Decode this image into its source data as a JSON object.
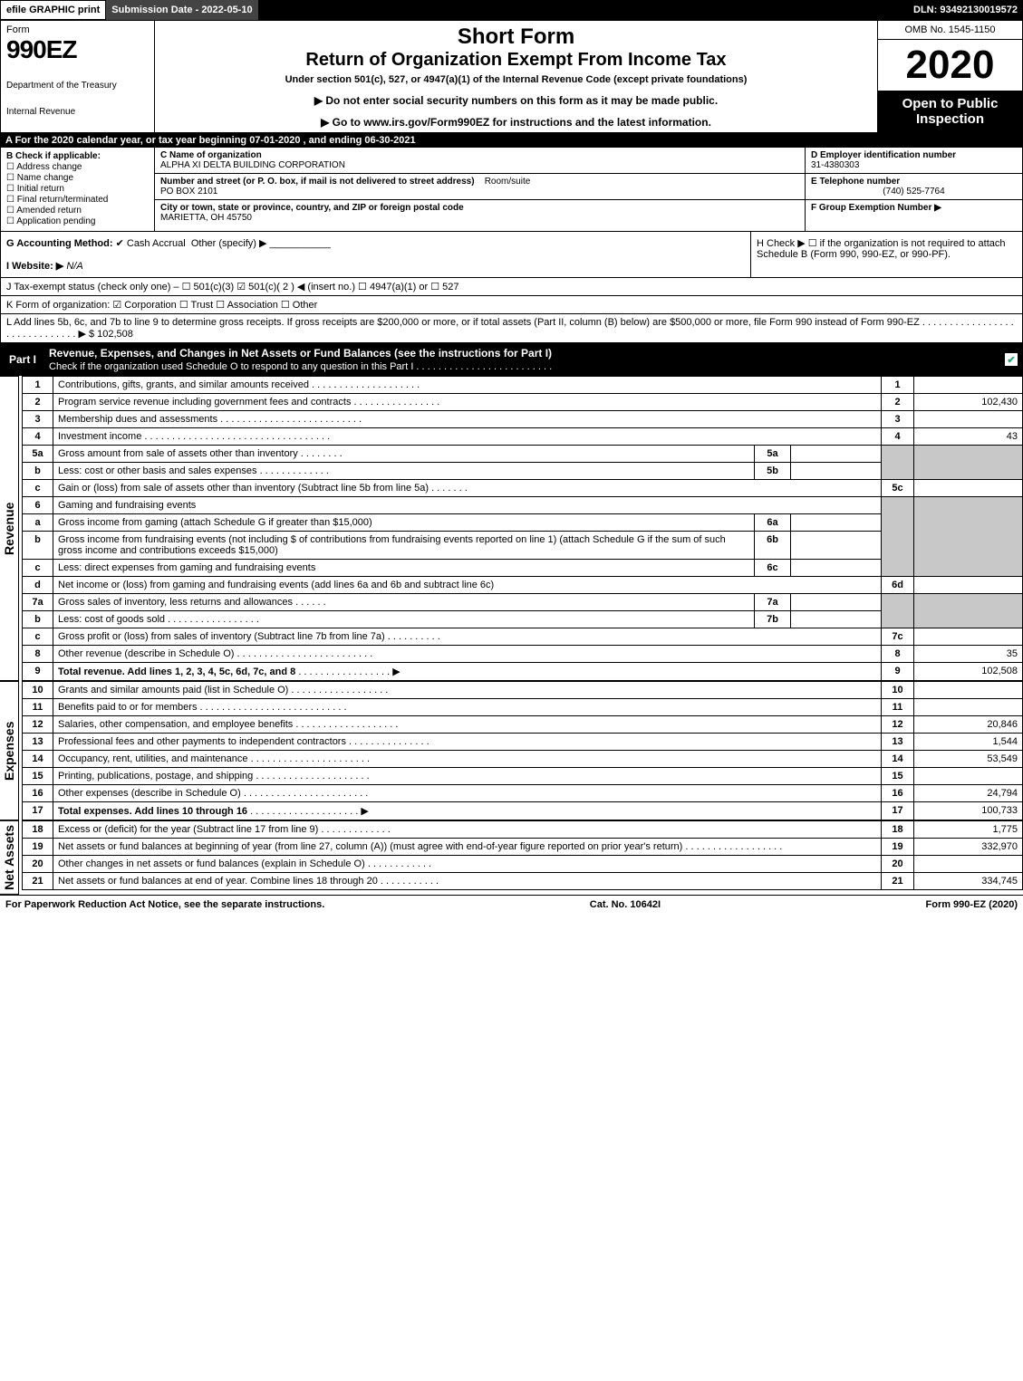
{
  "topbar": {
    "efile": "efile GRAPHIC print",
    "submission": "Submission Date - 2022-05-10",
    "dln": "DLN: 93492130019572"
  },
  "header": {
    "form_word": "Form",
    "form_num": "990EZ",
    "dept1": "Department of the Treasury",
    "dept2": "Internal Revenue",
    "short": "Short Form",
    "return": "Return of Organization Exempt From Income Tax",
    "under": "Under section 501(c), 527, or 4947(a)(1) of the Internal Revenue Code (except private foundations)",
    "warn": "▶ Do not enter social security numbers on this form as it may be made public.",
    "goto": "▶ Go to www.irs.gov/Form990EZ for instructions and the latest information.",
    "omb": "OMB No. 1545-1150",
    "year": "2020",
    "opento": "Open to Public Inspection"
  },
  "rowA": "A  For the 2020 calendar year, or tax year beginning 07-01-2020 , and ending 06-30-2021",
  "B": {
    "title": "B  Check if applicable:",
    "opts": [
      "Address change",
      "Name change",
      "Initial return",
      "Final return/terminated",
      "Amended return",
      "Application pending"
    ]
  },
  "C": {
    "name_label": "C Name of organization",
    "name": "ALPHA XI DELTA BUILDING CORPORATION",
    "addr_label": "Number and street (or P. O. box, if mail is not delivered to street address)",
    "room_label": "Room/suite",
    "addr": "PO BOX 2101",
    "city_label": "City or town, state or province, country, and ZIP or foreign postal code",
    "city": "MARIETTA, OH  45750"
  },
  "D": {
    "label": "D Employer identification number",
    "val": "31-4380303"
  },
  "E": {
    "label": "E Telephone number",
    "val": "(740) 525-7764"
  },
  "F": {
    "label": "F Group Exemption Number  ▶",
    "val": ""
  },
  "G": {
    "label": "G Accounting Method:",
    "cash": "Cash",
    "accrual": "Accrual",
    "other": "Other (specify) ▶"
  },
  "H": {
    "text": "H  Check ▶ ☐ if the organization is not required to attach Schedule B (Form 990, 990-EZ, or 990-PF)."
  },
  "I": {
    "label": "I Website: ▶",
    "val": "N/A"
  },
  "J": {
    "text": "J Tax-exempt status (check only one) – ☐ 501(c)(3)  ☑ 501(c)( 2 ) ◀ (insert no.)  ☐ 4947(a)(1) or  ☐ 527"
  },
  "K": {
    "text": "K Form of organization:  ☑ Corporation  ☐ Trust  ☐ Association  ☐ Other"
  },
  "L": {
    "text": "L Add lines 5b, 6c, and 7b to line 9 to determine gross receipts. If gross receipts are $200,000 or more, or if total assets (Part II, column (B) below) are $500,000 or more, file Form 990 instead of Form 990-EZ  . . . . . . . . . . . . . . . . . . . . . . . . . . . . . .  ▶ $ 102,508"
  },
  "partI": {
    "label": "Part I",
    "title": "Revenue, Expenses, and Changes in Net Assets or Fund Balances (see the instructions for Part I)",
    "sub": "Check if the organization used Schedule O to respond to any question in this Part I . . . . . . . . . . . . . . . . . . . . . . . . ."
  },
  "revenue_label": "Revenue",
  "expenses_label": "Expenses",
  "netassets_label": "Net Assets",
  "lines": {
    "l1": {
      "n": "1",
      "d": "Contributions, gifts, grants, and similar amounts received",
      "box": "1",
      "amt": ""
    },
    "l2": {
      "n": "2",
      "d": "Program service revenue including government fees and contracts",
      "box": "2",
      "amt": "102,430"
    },
    "l3": {
      "n": "3",
      "d": "Membership dues and assessments",
      "box": "3",
      "amt": ""
    },
    "l4": {
      "n": "4",
      "d": "Investment income",
      "box": "4",
      "amt": "43"
    },
    "l5a": {
      "n": "5a",
      "d": "Gross amount from sale of assets other than inventory",
      "sub": "5a"
    },
    "l5b": {
      "n": "b",
      "d": "Less: cost or other basis and sales expenses",
      "sub": "5b"
    },
    "l5c": {
      "n": "c",
      "d": "Gain or (loss) from sale of assets other than inventory (Subtract line 5b from line 5a)",
      "box": "5c",
      "amt": ""
    },
    "l6": {
      "n": "6",
      "d": "Gaming and fundraising events"
    },
    "l6a": {
      "n": "a",
      "d": "Gross income from gaming (attach Schedule G if greater than $15,000)",
      "sub": "6a"
    },
    "l6b": {
      "n": "b",
      "d": "Gross income from fundraising events (not including $               of contributions from fundraising events reported on line 1) (attach Schedule G if the sum of such gross income and contributions exceeds $15,000)",
      "sub": "6b"
    },
    "l6c": {
      "n": "c",
      "d": "Less: direct expenses from gaming and fundraising events",
      "sub": "6c"
    },
    "l6d": {
      "n": "d",
      "d": "Net income or (loss) from gaming and fundraising events (add lines 6a and 6b and subtract line 6c)",
      "box": "6d",
      "amt": ""
    },
    "l7a": {
      "n": "7a",
      "d": "Gross sales of inventory, less returns and allowances",
      "sub": "7a"
    },
    "l7b": {
      "n": "b",
      "d": "Less: cost of goods sold",
      "sub": "7b"
    },
    "l7c": {
      "n": "c",
      "d": "Gross profit or (loss) from sales of inventory (Subtract line 7b from line 7a)",
      "box": "7c",
      "amt": ""
    },
    "l8": {
      "n": "8",
      "d": "Other revenue (describe in Schedule O)",
      "box": "8",
      "amt": "35"
    },
    "l9": {
      "n": "9",
      "d": "Total revenue. Add lines 1, 2, 3, 4, 5c, 6d, 7c, and 8",
      "box": "9",
      "amt": "102,508"
    },
    "l10": {
      "n": "10",
      "d": "Grants and similar amounts paid (list in Schedule O)",
      "box": "10",
      "amt": ""
    },
    "l11": {
      "n": "11",
      "d": "Benefits paid to or for members",
      "box": "11",
      "amt": ""
    },
    "l12": {
      "n": "12",
      "d": "Salaries, other compensation, and employee benefits",
      "box": "12",
      "amt": "20,846"
    },
    "l13": {
      "n": "13",
      "d": "Professional fees and other payments to independent contractors",
      "box": "13",
      "amt": "1,544"
    },
    "l14": {
      "n": "14",
      "d": "Occupancy, rent, utilities, and maintenance",
      "box": "14",
      "amt": "53,549"
    },
    "l15": {
      "n": "15",
      "d": "Printing, publications, postage, and shipping",
      "box": "15",
      "amt": ""
    },
    "l16": {
      "n": "16",
      "d": "Other expenses (describe in Schedule O)",
      "box": "16",
      "amt": "24,794"
    },
    "l17": {
      "n": "17",
      "d": "Total expenses. Add lines 10 through 16",
      "box": "17",
      "amt": "100,733"
    },
    "l18": {
      "n": "18",
      "d": "Excess or (deficit) for the year (Subtract line 17 from line 9)",
      "box": "18",
      "amt": "1,775"
    },
    "l19": {
      "n": "19",
      "d": "Net assets or fund balances at beginning of year (from line 27, column (A)) (must agree with end-of-year figure reported on prior year's return)",
      "box": "19",
      "amt": "332,970"
    },
    "l20": {
      "n": "20",
      "d": "Other changes in net assets or fund balances (explain in Schedule O)",
      "box": "20",
      "amt": ""
    },
    "l21": {
      "n": "21",
      "d": "Net assets or fund balances at end of year. Combine lines 18 through 20",
      "box": "21",
      "amt": "334,745"
    }
  },
  "footer": {
    "left": "For Paperwork Reduction Act Notice, see the separate instructions.",
    "center": "Cat. No. 10642I",
    "right": "Form 990-EZ (2020)"
  },
  "colors": {
    "black": "#000000",
    "white": "#ffffff",
    "shade": "#c8c8c8",
    "check": "#22aa77"
  }
}
